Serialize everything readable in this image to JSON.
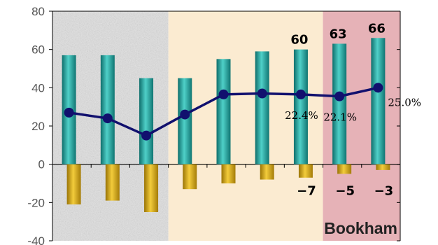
{
  "chart_data": {
    "type": "bar",
    "ylim": [
      -40,
      80
    ],
    "yticks": [
      -40,
      -20,
      0,
      20,
      40,
      60,
      80
    ],
    "grid": false,
    "categories": [
      "",
      "",
      "",
      "",
      "",
      "",
      "",
      "",
      ""
    ],
    "series": [
      {
        "kind": "bar",
        "color": "#1f9a96",
        "values": [
          57,
          57,
          45,
          45,
          55,
          59,
          60,
          63,
          66
        ],
        "labels": [
          "",
          "",
          "",
          "",
          "",
          "",
          "60",
          "63",
          "66"
        ]
      },
      {
        "kind": "bar",
        "color": "#d4a10c",
        "values": [
          -21,
          -19,
          -25,
          -13,
          -10,
          -8,
          -7,
          -5,
          -3
        ],
        "labels": [
          "",
          "",
          "",
          "",
          "",
          "",
          "−7",
          "−5",
          "−3"
        ]
      },
      {
        "kind": "line",
        "color": "#11106e",
        "values": [
          27,
          24,
          15,
          26,
          36.5,
          37,
          36.5,
          35.5,
          40
        ],
        "labels": [
          "",
          "",
          "",
          "",
          "",
          "",
          "22.4%",
          "22.1%",
          "25.0%"
        ]
      }
    ],
    "background_regions": [
      {
        "from": 0,
        "to": 3,
        "color": "#e4e4e4"
      },
      {
        "from": 3,
        "to": 7,
        "color": "#fbebd1"
      },
      {
        "from": 7,
        "to": 9,
        "color": "#e6b2b7"
      }
    ],
    "watermark": "Bookham"
  }
}
